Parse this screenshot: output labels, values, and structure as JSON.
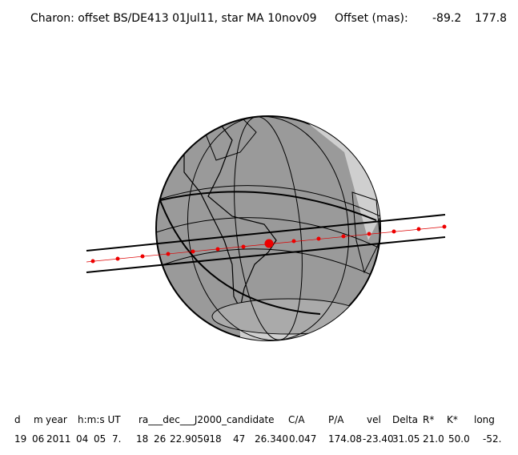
{
  "header": {
    "title": "Charon: offset BS/DE413 01Jul11, star MA 10nov09",
    "offset_label": "Offset (mas):",
    "offset_values": [
      "-89.2",
      "177.8"
    ]
  },
  "table": {
    "columns": [
      "d",
      "m",
      "year",
      "h:m:s UT",
      "ra___dec___J2000_candidate",
      "C/A",
      "P/A",
      "vel",
      "Delta",
      "R*",
      "K*",
      "long"
    ],
    "row": [
      "19",
      "06",
      "2011",
      "04",
      "05",
      "7.",
      "18",
      "26",
      "22.9050",
      "-18",
      "47",
      "26.340",
      "0.047",
      "174.08",
      "-23.40",
      "31.05",
      "21.0",
      "50.0",
      "-52."
    ]
  }
}
